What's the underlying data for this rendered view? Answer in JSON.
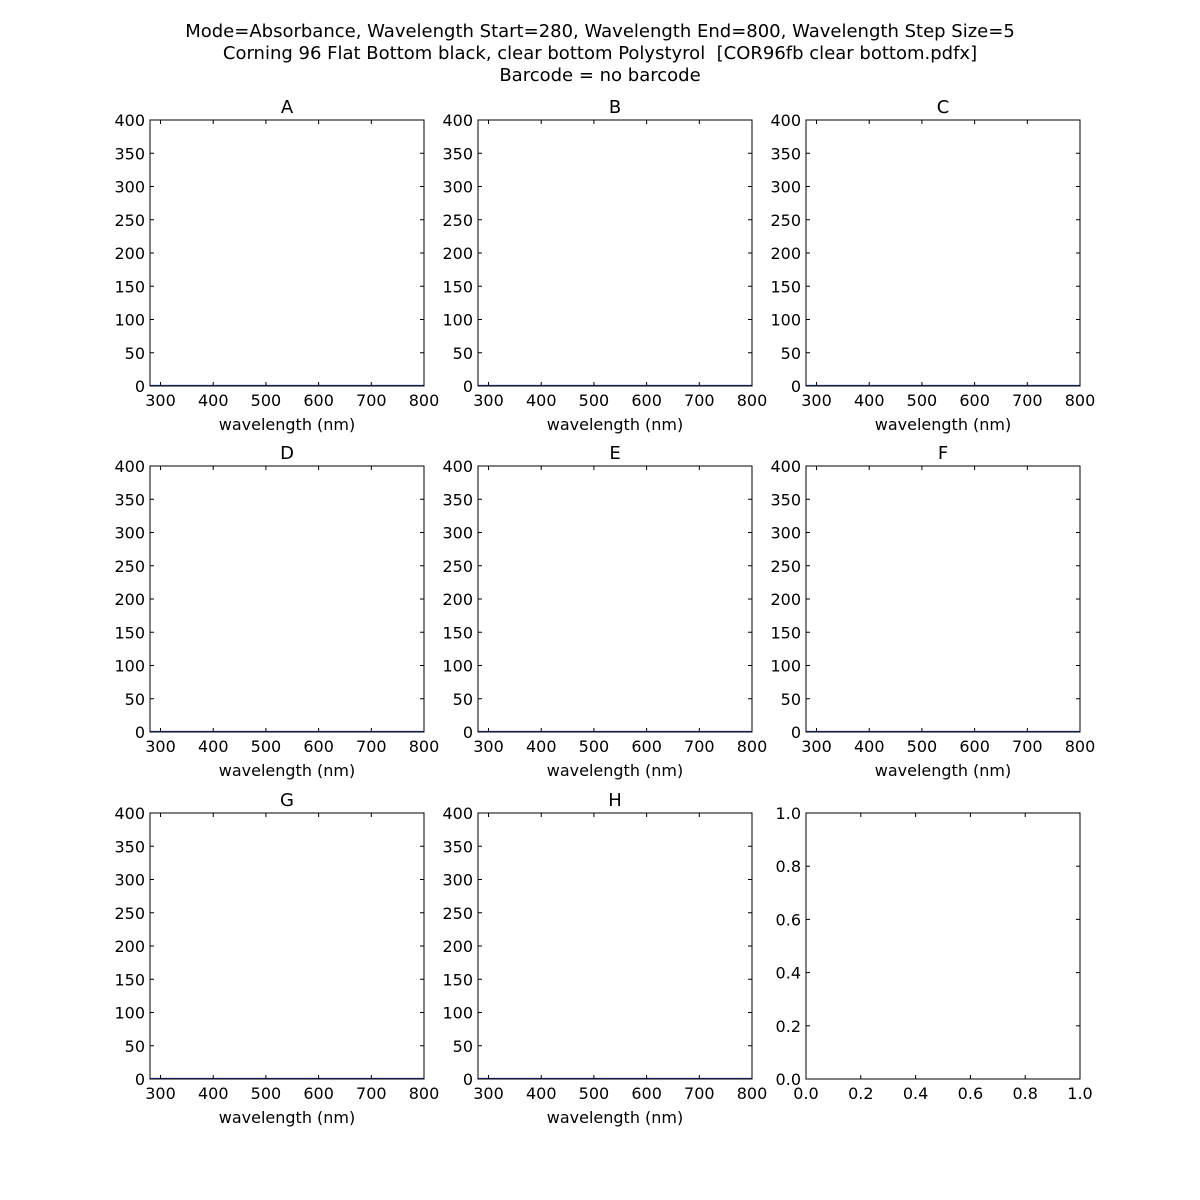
{
  "figure": {
    "title_lines": [
      "Mode=Absorbance, Wavelength Start=280, Wavelength End=800, Wavelength Step Size=5",
      "Corning 96 Flat Bottom black, clear bottom Polystyrol  [COR96fb clear bottom.pdfx]",
      "Barcode = no barcode"
    ]
  },
  "chart_data": [
    {
      "type": "line",
      "title": "A",
      "xlabel": "wavelength (nm)",
      "ylabel": "",
      "xlim": [
        280,
        800
      ],
      "ylim": [
        0,
        400
      ],
      "xticks": [
        300,
        400,
        500,
        600,
        700,
        800
      ],
      "yticks": [
        0,
        50,
        100,
        150,
        200,
        250,
        300,
        350,
        400
      ],
      "series": [
        {
          "x": [
            280,
            800
          ],
          "y": [
            0.5,
            0.5
          ],
          "color": "#1f3a93"
        }
      ]
    },
    {
      "type": "line",
      "title": "B",
      "xlabel": "wavelength (nm)",
      "ylabel": "",
      "xlim": [
        280,
        800
      ],
      "ylim": [
        0,
        400
      ],
      "xticks": [
        300,
        400,
        500,
        600,
        700,
        800
      ],
      "yticks": [
        0,
        50,
        100,
        150,
        200,
        250,
        300,
        350,
        400
      ],
      "series": [
        {
          "x": [
            280,
            800
          ],
          "y": [
            0.5,
            0.5
          ],
          "color": "#1f3a93"
        }
      ]
    },
    {
      "type": "line",
      "title": "C",
      "xlabel": "wavelength (nm)",
      "ylabel": "",
      "xlim": [
        280,
        800
      ],
      "ylim": [
        0,
        400
      ],
      "xticks": [
        300,
        400,
        500,
        600,
        700,
        800
      ],
      "yticks": [
        0,
        50,
        100,
        150,
        200,
        250,
        300,
        350,
        400
      ],
      "series": [
        {
          "x": [
            280,
            800
          ],
          "y": [
            0.5,
            0.5
          ],
          "color": "#1f3a93"
        }
      ]
    },
    {
      "type": "line",
      "title": "D",
      "xlabel": "wavelength (nm)",
      "ylabel": "",
      "xlim": [
        280,
        800
      ],
      "ylim": [
        0,
        400
      ],
      "xticks": [
        300,
        400,
        500,
        600,
        700,
        800
      ],
      "yticks": [
        0,
        50,
        100,
        150,
        200,
        250,
        300,
        350,
        400
      ],
      "series": [
        {
          "x": [
            280,
            800
          ],
          "y": [
            0.5,
            0.5
          ],
          "color": "#1f3a93"
        }
      ]
    },
    {
      "type": "line",
      "title": "E",
      "xlabel": "wavelength (nm)",
      "ylabel": "",
      "xlim": [
        280,
        800
      ],
      "ylim": [
        0,
        400
      ],
      "xticks": [
        300,
        400,
        500,
        600,
        700,
        800
      ],
      "yticks": [
        0,
        50,
        100,
        150,
        200,
        250,
        300,
        350,
        400
      ],
      "series": [
        {
          "x": [
            280,
            800
          ],
          "y": [
            0.5,
            0.5
          ],
          "color": "#1f3a93"
        }
      ]
    },
    {
      "type": "line",
      "title": "F",
      "xlabel": "wavelength (nm)",
      "ylabel": "",
      "xlim": [
        280,
        800
      ],
      "ylim": [
        0,
        400
      ],
      "xticks": [
        300,
        400,
        500,
        600,
        700,
        800
      ],
      "yticks": [
        0,
        50,
        100,
        150,
        200,
        250,
        300,
        350,
        400
      ],
      "series": [
        {
          "x": [
            280,
            800
          ],
          "y": [
            0.5,
            0.5
          ],
          "color": "#1f3a93"
        }
      ]
    },
    {
      "type": "line",
      "title": "G",
      "xlabel": "wavelength (nm)",
      "ylabel": "",
      "xlim": [
        280,
        800
      ],
      "ylim": [
        0,
        400
      ],
      "xticks": [
        300,
        400,
        500,
        600,
        700,
        800
      ],
      "yticks": [
        0,
        50,
        100,
        150,
        200,
        250,
        300,
        350,
        400
      ],
      "series": [
        {
          "x": [
            280,
            800
          ],
          "y": [
            0.5,
            0.5
          ],
          "color": "#1f3a93"
        }
      ]
    },
    {
      "type": "line",
      "title": "H",
      "xlabel": "wavelength (nm)",
      "ylabel": "",
      "xlim": [
        280,
        800
      ],
      "ylim": [
        0,
        400
      ],
      "xticks": [
        300,
        400,
        500,
        600,
        700,
        800
      ],
      "yticks": [
        0,
        50,
        100,
        150,
        200,
        250,
        300,
        350,
        400
      ],
      "series": [
        {
          "x": [
            280,
            800
          ],
          "y": [
            0.5,
            0.5
          ],
          "color": "#1f3a93"
        }
      ]
    },
    {
      "type": "line",
      "title": "",
      "xlabel": "",
      "ylabel": "",
      "xlim": [
        0,
        1
      ],
      "ylim": [
        0,
        1
      ],
      "xticks": [
        "0.0",
        "0.2",
        "0.4",
        "0.6",
        "0.8",
        "1.0"
      ],
      "yticks": [
        "0.0",
        "0.2",
        "0.4",
        "0.6",
        "0.8",
        "1.0"
      ],
      "series": []
    }
  ]
}
